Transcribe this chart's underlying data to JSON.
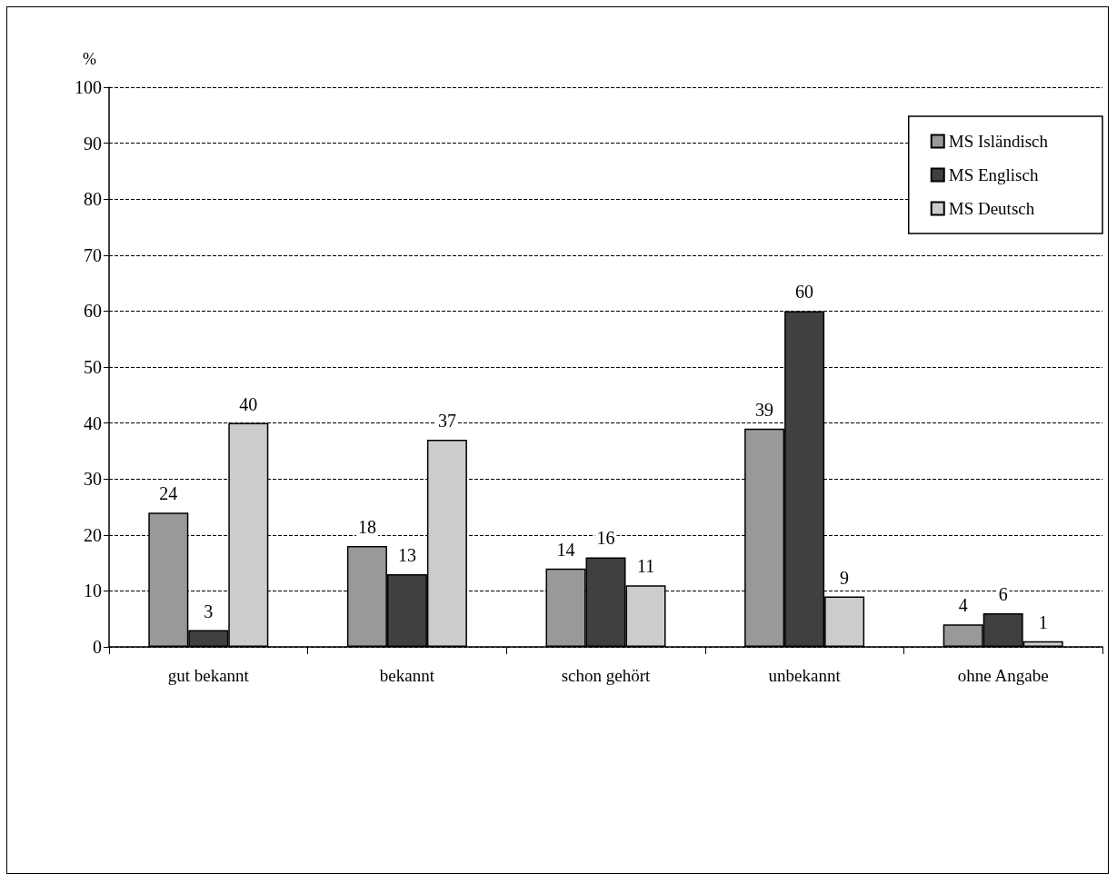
{
  "chart_data": {
    "type": "bar",
    "ylabel": "%",
    "categories": [
      "gut bekannt",
      "bekannt",
      "schon gehört",
      "unbekannt",
      "ohne Angabe"
    ],
    "series": [
      {
        "name": "MS Isländisch",
        "color": "#999999",
        "values": [
          24,
          18,
          14,
          39,
          4
        ]
      },
      {
        "name": "MS Englisch",
        "color": "#404040",
        "values": [
          3,
          13,
          16,
          60,
          6
        ]
      },
      {
        "name": "MS Deutsch",
        "color": "#cccccc",
        "values": [
          40,
          37,
          11,
          9,
          1
        ]
      }
    ],
    "ylim": [
      0,
      100
    ],
    "yticks": [
      0,
      10,
      20,
      30,
      40,
      50,
      60,
      70,
      80,
      90,
      100
    ],
    "grid": "y",
    "legend": "top right",
    "data_labels": true
  }
}
